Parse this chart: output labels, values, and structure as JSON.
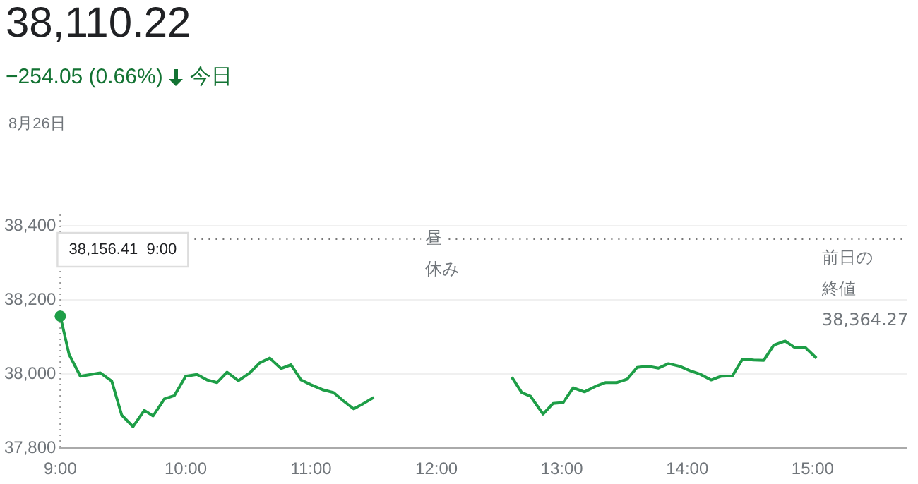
{
  "chart_data": {
    "type": "line",
    "title": "38,110.22",
    "subtitle": "−254.05 (0.66%)",
    "x": [
      9,
      9.07,
      9.16,
      9.32,
      9.41,
      9.49,
      9.58,
      9.67,
      9.74,
      9.83,
      9.91,
      10,
      10.09,
      10.17,
      10.25,
      10.33,
      10.42,
      10.51,
      10.59,
      10.67,
      10.76,
      10.84,
      10.92,
      11,
      11.09,
      11.18,
      11.26,
      11.34,
      11.42,
      11.5,
      12.05,
      12.6,
      12.68,
      12.75,
      12.85,
      12.93,
      13.01,
      13.09,
      13.18,
      13.27,
      13.35,
      13.44,
      13.52,
      13.6,
      13.69,
      13.77,
      13.85,
      13.94,
      14.02,
      14.1,
      14.19,
      14.27,
      14.36,
      14.44,
      14.53,
      14.61,
      14.69,
      14.78,
      14.86,
      14.94,
      15.03
    ],
    "series": [
      {
        "color": "#1e9e47",
        "values": [
          38156,
          38053,
          37994,
          38003,
          37981,
          37889,
          37858,
          37902,
          37887,
          37933,
          37942,
          37994,
          37999,
          37984,
          37977,
          38005,
          37982,
          38003,
          38030,
          38043,
          38015,
          38025,
          37984,
          37971,
          37958,
          37950,
          37927,
          37906,
          37921,
          37937,
          null,
          37992,
          37950,
          37940,
          37892,
          37921,
          37923,
          37963,
          37952,
          37967,
          37977,
          37977,
          37986,
          38018,
          38021,
          38016,
          38028,
          38021,
          38009,
          38000,
          37984,
          37994,
          37995,
          38040,
          38038,
          38037,
          38078,
          38089,
          38071,
          38072,
          38043
        ]
      }
    ],
    "xlim": [
      9,
      15.75
    ],
    "ylim": [
      37800,
      38400
    ],
    "xticks": [
      {
        "value": 9,
        "label": "9:00"
      },
      {
        "value": 10,
        "label": "10:00"
      },
      {
        "value": 11,
        "label": "11:00"
      },
      {
        "value": 12,
        "label": "12:00"
      },
      {
        "value": 13,
        "label": "13:00"
      },
      {
        "value": 14,
        "label": "14:00"
      },
      {
        "value": 15,
        "label": "15:00"
      }
    ],
    "yticks": [
      {
        "value": 37800,
        "label": "37,800"
      },
      {
        "value": 38000,
        "label": "38,000"
      },
      {
        "value": 38200,
        "label": "38,200"
      },
      {
        "value": 38400,
        "label": "38,400"
      }
    ],
    "grid": "y",
    "legend": false,
    "marker": "none",
    "line_style": "solid",
    "ref_lines": [
      {
        "axis": "y",
        "value": 38364.27,
        "label": "前日の終値",
        "line_style": "dotted",
        "color": "#777777"
      }
    ],
    "annotations": [
      "今日",
      "8月26日",
      "38,156.41  9:00",
      "昼休み",
      "38,364.27"
    ]
  }
}
